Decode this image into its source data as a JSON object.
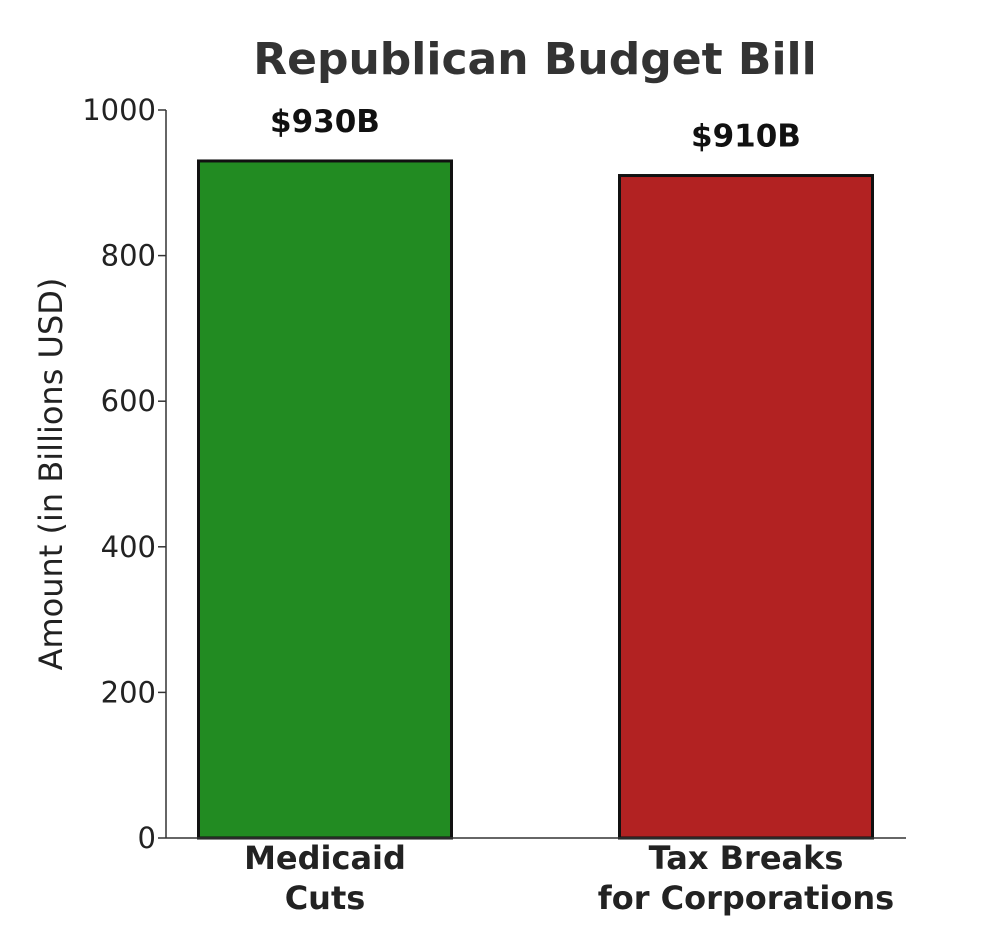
{
  "chart_data": {
    "type": "bar",
    "title": "Republican Budget Bill",
    "xlabel": "",
    "ylabel": "Amount (in Billions USD)",
    "ylim": [
      0,
      1000
    ],
    "yticks": [
      0,
      200,
      400,
      600,
      800,
      1000
    ],
    "grid": false,
    "categories": [
      [
        "Medicaid",
        "Cuts"
      ],
      [
        "Tax Breaks",
        "for Corporations"
      ]
    ],
    "values": [
      930,
      910
    ],
    "data_labels": [
      "$930B",
      "$910B"
    ],
    "colors": [
      "#228b22",
      "#b22222"
    ],
    "edge_color": "#111111"
  }
}
